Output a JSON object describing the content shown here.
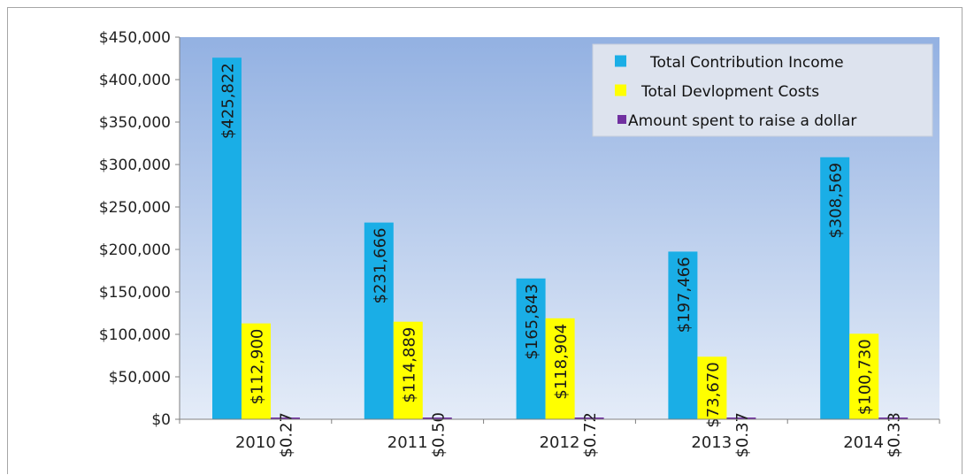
{
  "chart_data": {
    "type": "bar",
    "title": "",
    "xlabel": "",
    "ylabel": "",
    "ylim": [
      0,
      450000
    ],
    "yticks": [
      0,
      50000,
      100000,
      150000,
      200000,
      250000,
      300000,
      350000,
      400000,
      450000
    ],
    "ytick_labels": [
      "$0",
      "$50,000",
      "$100,000",
      "$150,000",
      "$200,000",
      "$250,000",
      "$300,000",
      "$350,000",
      "$400,000",
      "$450,000"
    ],
    "categories": [
      "2010",
      "2011",
      "2012",
      "2013",
      "2014"
    ],
    "grid": false,
    "legend_position": "top-right",
    "series": [
      {
        "name": "Total Contribution Income",
        "color": "#1aaee6",
        "values": [
          425822,
          231666,
          165843,
          197466,
          308569
        ],
        "labels": [
          "$425,822",
          "$231,666",
          "$165,843",
          "$197,466",
          "$308,569"
        ]
      },
      {
        "name": "Total Devlopment Costs",
        "color": "#ffff00",
        "values": [
          112900,
          114889,
          118904,
          73670,
          100730
        ],
        "labels": [
          "$112,900",
          "$114,889",
          "$118,904",
          "$73,670",
          "$100,730"
        ]
      },
      {
        "name": "Amount spent to raise a dollar",
        "color": "#7030a0",
        "values": [
          0.27,
          0.5,
          0.72,
          0.37,
          0.33
        ],
        "labels": [
          "$0.27",
          "$0.50",
          "$0.72",
          "$0.37",
          "$0.33"
        ]
      }
    ]
  }
}
